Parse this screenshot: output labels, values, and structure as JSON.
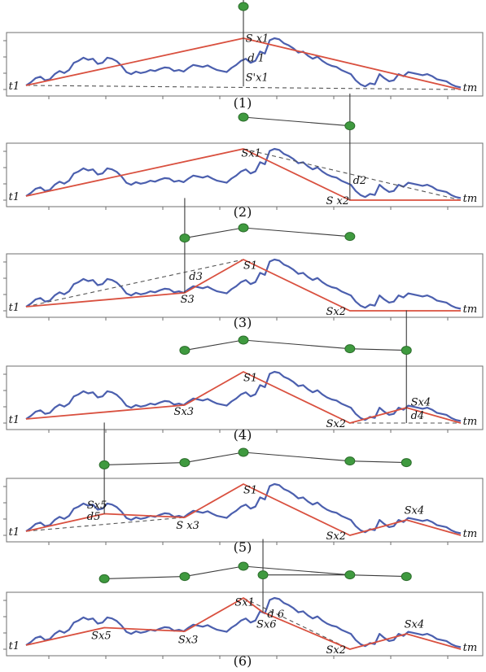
{
  "colors": {
    "series": "#4b5fae",
    "approximation": "#d9503f",
    "node": "#3f9a3f"
  },
  "panels": [
    {
      "caption": "(1)",
      "tree_nodes": [
        [
          0.5,
          1.0
        ]
      ],
      "tree_edges": [],
      "approx_points": [
        [
          0,
          0.08
        ],
        [
          0.5,
          1.0
        ],
        [
          1,
          0.0
        ]
      ],
      "dashed_lines": [
        [
          [
            0,
            0.08
          ],
          [
            1,
            0.0
          ]
        ]
      ],
      "distance_lines": [
        [
          0.5,
          1.0,
          0.5,
          0.06
        ],
        [
          0.5,
          1.0,
          0.5,
          2.1
        ]
      ],
      "labels": [
        {
          "text": "S x1",
          "at": [
            0.505,
            0.93
          ]
        },
        {
          "text": "d 1",
          "at": [
            0.51,
            0.55
          ]
        },
        {
          "text": "S'x1",
          "at": [
            0.505,
            0.17
          ]
        },
        {
          "text": "t1",
          "at": [
            -0.04,
            0.0
          ]
        },
        {
          "text": "tm",
          "at": [
            1.005,
            -0.03
          ]
        }
      ]
    },
    {
      "caption": "(2)",
      "tree_nodes": [
        [
          0.5,
          1.0
        ],
        [
          0.745,
          0.62
        ]
      ],
      "tree_edges": [
        [
          0,
          1
        ]
      ],
      "approx_points": [
        [
          0,
          0.08
        ],
        [
          0.5,
          1.0
        ],
        [
          0.745,
          0.0
        ],
        [
          1,
          0.0
        ]
      ],
      "dashed_lines": [
        [
          [
            0.5,
            1.0
          ],
          [
            1,
            0.0
          ]
        ]
      ],
      "distance_lines": [
        [
          0.745,
          0.0,
          0.745,
          2.08
        ]
      ],
      "labels": [
        {
          "text": "Sx1",
          "at": [
            0.495,
            0.85
          ]
        },
        {
          "text": "d2",
          "at": [
            0.752,
            0.32
          ]
        },
        {
          "text": "S x2",
          "at": [
            0.69,
            -0.08
          ]
        },
        {
          "text": "t1",
          "at": [
            -0.04,
            0.0
          ]
        },
        {
          "text": "tm",
          "at": [
            1.005,
            -0.03
          ]
        }
      ]
    },
    {
      "caption": "(3)",
      "tree_nodes": [
        [
          0.365,
          0.55
        ],
        [
          0.5,
          1.0
        ],
        [
          0.745,
          0.62
        ]
      ],
      "tree_edges": [
        [
          0,
          1
        ],
        [
          1,
          2
        ]
      ],
      "approx_points": [
        [
          0,
          0.08
        ],
        [
          0.365,
          0.35
        ],
        [
          0.5,
          1.0
        ],
        [
          0.745,
          0.0
        ],
        [
          1,
          0.0
        ]
      ],
      "dashed_lines": [
        [
          [
            0,
            0.08
          ],
          [
            0.5,
            1.0
          ]
        ]
      ],
      "distance_lines": [
        [
          0.365,
          0.35,
          0.365,
          2.2
        ]
      ],
      "labels": [
        {
          "text": "S1",
          "at": [
            0.5,
            0.82
          ]
        },
        {
          "text": "d3",
          "at": [
            0.375,
            0.6
          ]
        },
        {
          "text": "S3",
          "at": [
            0.355,
            0.16
          ]
        },
        {
          "text": "Sx2",
          "at": [
            0.69,
            -0.08
          ]
        },
        {
          "text": "t1",
          "at": [
            -0.04,
            0.0
          ]
        },
        {
          "text": "tm",
          "at": [
            1.005,
            -0.03
          ]
        }
      ]
    },
    {
      "caption": "(4)",
      "tree_nodes": [
        [
          0.365,
          0.55
        ],
        [
          0.5,
          1.0
        ],
        [
          0.745,
          0.62
        ],
        [
          0.875,
          0.55
        ]
      ],
      "tree_edges": [
        [
          0,
          1
        ],
        [
          1,
          2
        ],
        [
          2,
          3
        ]
      ],
      "approx_points": [
        [
          0,
          0.08
        ],
        [
          0.365,
          0.35
        ],
        [
          0.5,
          1.0
        ],
        [
          0.745,
          0.0
        ],
        [
          0.875,
          0.3
        ],
        [
          1,
          0.0
        ]
      ],
      "dashed_lines": [
        [
          [
            0.745,
            0.0
          ],
          [
            1,
            0.0
          ]
        ]
      ],
      "distance_lines": [
        [
          0.875,
          0.0,
          0.875,
          2.2
        ]
      ],
      "labels": [
        {
          "text": "S1",
          "at": [
            0.5,
            0.82
          ]
        },
        {
          "text": "Sx3",
          "at": [
            0.34,
            0.16
          ]
        },
        {
          "text": "Sx2",
          "at": [
            0.69,
            -0.08
          ]
        },
        {
          "text": "Sx4",
          "at": [
            0.885,
            0.34
          ]
        },
        {
          "text": "d4",
          "at": [
            0.885,
            0.08
          ]
        },
        {
          "text": "t1",
          "at": [
            -0.04,
            0.0
          ]
        },
        {
          "text": "tm",
          "at": [
            1.005,
            -0.03
          ]
        }
      ]
    },
    {
      "caption": "(5)",
      "tree_nodes": [
        [
          0.18,
          0.45
        ],
        [
          0.365,
          0.55
        ],
        [
          0.5,
          1.0
        ],
        [
          0.745,
          0.62
        ],
        [
          0.875,
          0.55
        ]
      ],
      "tree_edges": [
        [
          0,
          1
        ],
        [
          1,
          2
        ],
        [
          2,
          3
        ],
        [
          3,
          4
        ]
      ],
      "approx_points": [
        [
          0,
          0.08
        ],
        [
          0.18,
          0.42
        ],
        [
          0.365,
          0.35
        ],
        [
          0.5,
          1.0
        ],
        [
          0.745,
          0.0
        ],
        [
          0.875,
          0.3
        ],
        [
          1,
          0.0
        ]
      ],
      "dashed_lines": [
        [
          [
            0,
            0.08
          ],
          [
            0.365,
            0.35
          ]
        ]
      ],
      "distance_lines": [
        [
          0.18,
          0.42,
          0.18,
          2.2
        ]
      ],
      "labels": [
        {
          "text": "Sx5",
          "at": [
            0.14,
            0.52
          ]
        },
        {
          "text": "d5",
          "at": [
            0.14,
            0.3
          ]
        },
        {
          "text": "S1",
          "at": [
            0.5,
            0.82
          ]
        },
        {
          "text": "S x3",
          "at": [
            0.345,
            0.13
          ]
        },
        {
          "text": "Sx2",
          "at": [
            0.69,
            -0.08
          ]
        },
        {
          "text": "Sx4",
          "at": [
            0.87,
            0.42
          ]
        },
        {
          "text": "t1",
          "at": [
            -0.04,
            0.0
          ]
        },
        {
          "text": "tm",
          "at": [
            1.005,
            -0.03
          ]
        }
      ]
    },
    {
      "caption": "(6)",
      "tree_nodes": [
        [
          0.18,
          0.45
        ],
        [
          0.365,
          0.55
        ],
        [
          0.5,
          1.0
        ],
        [
          0.545,
          0.62
        ],
        [
          0.745,
          0.62
        ],
        [
          0.875,
          0.55
        ]
      ],
      "tree_edges": [
        [
          0,
          1
        ],
        [
          1,
          2
        ],
        [
          2,
          4
        ],
        [
          3,
          4
        ],
        [
          4,
          5
        ]
      ],
      "approx_points": [
        [
          0,
          0.08
        ],
        [
          0.18,
          0.42
        ],
        [
          0.365,
          0.35
        ],
        [
          0.5,
          1.0
        ],
        [
          0.545,
          0.72
        ],
        [
          0.745,
          0.0
        ],
        [
          0.875,
          0.3
        ],
        [
          1,
          0.0
        ]
      ],
      "dashed_lines": [
        [
          [
            0.5,
            1.0
          ],
          [
            0.745,
            0.0
          ]
        ]
      ],
      "distance_lines": [
        [
          0.545,
          0.72,
          0.545,
          2.15
        ]
      ],
      "labels": [
        {
          "text": "Sx1",
          "at": [
            0.48,
            0.85
          ]
        },
        {
          "text": "d 6",
          "at": [
            0.555,
            0.62
          ]
        },
        {
          "text": "Sx6",
          "at": [
            0.53,
            0.42
          ]
        },
        {
          "text": "Sx5",
          "at": [
            0.15,
            0.2
          ]
        },
        {
          "text": "Sx3",
          "at": [
            0.35,
            0.12
          ]
        },
        {
          "text": "Sx2",
          "at": [
            0.69,
            -0.08
          ]
        },
        {
          "text": "Sx4",
          "at": [
            0.87,
            0.42
          ]
        },
        {
          "text": "t1",
          "at": [
            -0.04,
            0.0
          ]
        },
        {
          "text": "tm",
          "at": [
            1.005,
            -0.03
          ]
        }
      ]
    }
  ],
  "series": [
    0.08,
    0.14,
    0.22,
    0.25,
    0.18,
    0.2,
    0.3,
    0.36,
    0.32,
    0.38,
    0.52,
    0.56,
    0.62,
    0.58,
    0.6,
    0.5,
    0.52,
    0.62,
    0.6,
    0.55,
    0.46,
    0.34,
    0.3,
    0.35,
    0.32,
    0.34,
    0.38,
    0.36,
    0.4,
    0.43,
    0.42,
    0.36,
    0.38,
    0.35,
    0.42,
    0.48,
    0.46,
    0.44,
    0.47,
    0.42,
    0.38,
    0.36,
    0.34,
    0.42,
    0.48,
    0.56,
    0.6,
    0.52,
    0.56,
    0.74,
    0.7,
    0.96,
    1.0,
    0.98,
    0.9,
    0.86,
    0.8,
    0.72,
    0.74,
    0.66,
    0.6,
    0.64,
    0.56,
    0.5,
    0.46,
    0.44,
    0.38,
    0.34,
    0.3,
    0.18,
    0.1,
    0.06,
    0.12,
    0.1,
    0.3,
    0.22,
    0.16,
    0.18,
    0.3,
    0.26,
    0.34,
    0.32,
    0.3,
    0.28,
    0.3,
    0.26,
    0.2,
    0.18,
    0.16,
    0.1,
    0.06,
    0.04
  ]
}
